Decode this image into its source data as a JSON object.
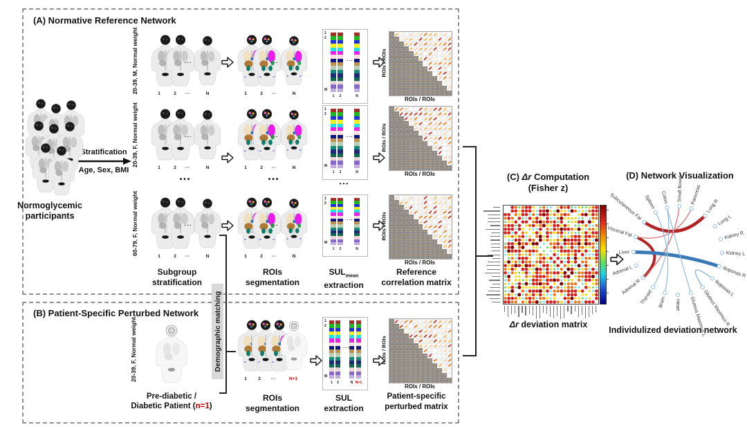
{
  "colors": {
    "accent_red": "#c00000",
    "panel_border": "#8f8f8f",
    "matrix_gray": "#8d8680",
    "demographic_bg": "#d9d9d9",
    "edge_red": "#b22222",
    "edge_red_thin": "#d66a6a",
    "edge_blue": "#3b78b5",
    "edge_blue_thin": "#90bada",
    "node_stroke": "#9cc3e5"
  },
  "panelA": {
    "title": "(A) Normative Reference Network",
    "participants_line1": "Normoglycemic",
    "participants_line2": "participants",
    "strat_top": "Stratification",
    "strat_bottom": "Age, Sex, BMI",
    "subgroups": [
      "20-39, M, Normal weight",
      "20-39, F, Normal weight",
      "60-79, F, Normal weight"
    ],
    "row_dots": "•••",
    "body_indices": [
      "1",
      "2",
      "···",
      "N"
    ],
    "sul_row_top": [
      "1",
      "2"
    ],
    "sul_row_bottom": "M",
    "sul_col_indices": [
      "1",
      "2",
      "N"
    ],
    "axis_label": "ROIs / ROIs",
    "cap_subgroup_1": "Subgroup",
    "cap_subgroup_2": "stratification",
    "cap_rois_1": "ROIs",
    "cap_rois_2": "segmentation",
    "cap_sul_main": "SUL",
    "cap_sul_sub": "mean",
    "cap_sul_2": "extraction",
    "cap_matrix_1": "Reference",
    "cap_matrix_2": "correlation matrix"
  },
  "panelB": {
    "title": "(B) Patient-Specific Perturbed Network",
    "patient_strat": "20-39, F, Normal weight",
    "patient_cap_line1": "Pre-diabetic /",
    "patient_cap_pre": "Diabetic Patient (",
    "patient_cap_red": "n=1",
    "patient_cap_post": ")",
    "demographic": "Demographic matching",
    "body_indices": [
      "1",
      "2",
      "···"
    ],
    "body_index_last": "N+1",
    "sul_col_indices": [
      "1",
      "2",
      "N"
    ],
    "sul_col_last": "N+1",
    "axis_label": "ROIs / ROIs",
    "cap_rois_1": "ROIs",
    "cap_rois_2": "segmentation",
    "cap_sul_1": "SUL",
    "cap_sul_2": "extraction",
    "cap_matrix_1": "Patient-specific",
    "cap_matrix_2": "perturbed matrix"
  },
  "panelC": {
    "title_pre": "(C) ",
    "title_italic": "Δr",
    "title_post": " Computation",
    "title_line2": "(Fisher z)",
    "cap_italic": "Δr",
    "cap_post": " deviation matrix",
    "matrix": {
      "size": 27,
      "seed": 12345,
      "palette": [
        {
          "c": "#7f0000",
          "r": 2.6,
          "p": 0.05
        },
        {
          "c": "#d62020",
          "r": 2.4,
          "p": 0.3
        },
        {
          "c": "#f07010",
          "r": 2.1,
          "p": 0.22
        },
        {
          "c": "#f5d800",
          "r": 1.7,
          "p": 0.2
        },
        {
          "c": "#50d050",
          "r": 1.4,
          "p": 0.07
        },
        {
          "c": "#30d0e0",
          "r": 1.2,
          "p": 0.11
        },
        {
          "c": "none",
          "r": 0,
          "p": 0.05
        }
      ]
    }
  },
  "panelD": {
    "title": "(D) Network Visualization",
    "caption": "Individulized deviation network",
    "nodes": [
      {
        "label": "Pancreas",
        "angle": 72
      },
      {
        "label": "Small Bowel",
        "angle": 88
      },
      {
        "label": "Colon",
        "angle": 104
      },
      {
        "label": "Spleen",
        "angle": 120
      },
      {
        "label": "Subcutaneous Fat",
        "angle": 140
      },
      {
        "label": "Visceral Fat",
        "angle": 162
      },
      {
        "label": "Liver",
        "angle": 182
      },
      {
        "label": "Adrenal L",
        "angle": 200
      },
      {
        "label": "Adrenal R",
        "angle": 218
      },
      {
        "label": "Thyroid",
        "angle": 236
      },
      {
        "label": "Brain",
        "angle": 253
      },
      {
        "label": "Heart",
        "angle": 270
      },
      {
        "label": "Gluteus Maximus L",
        "angle": 287
      },
      {
        "label": "Gluteus Maximus R",
        "angle": 304
      },
      {
        "label": "Iliopsoas L",
        "angle": 321
      },
      {
        "label": "Iliopsoas R",
        "angle": 339
      },
      {
        "label": "Kidney L",
        "angle": 357
      },
      {
        "label": "Kidney R",
        "angle": 15
      },
      {
        "label": "Lung L",
        "angle": 33
      },
      {
        "label": "Lung R",
        "angle": 52
      }
    ],
    "edges": [
      {
        "from": "Subcutaneous Fat",
        "to": "Lung R",
        "type": "red",
        "w": 4.5
      },
      {
        "from": "Visceral Fat",
        "to": "Adrenal R",
        "type": "red",
        "w": 4
      },
      {
        "from": "Visceral Fat",
        "to": "Pancreas",
        "type": "red_thin",
        "w": 1.2
      },
      {
        "from": "Adrenal R",
        "to": "Small Bowel",
        "type": "red_thin",
        "w": 1.2
      },
      {
        "from": "Liver",
        "to": "Iliopsoas R",
        "type": "blue",
        "w": 5
      },
      {
        "from": "Spleen",
        "to": "Brain",
        "type": "blue_thin",
        "w": 1.2
      },
      {
        "from": "Colon",
        "to": "Thyroid",
        "type": "blue_thin",
        "w": 1.2
      },
      {
        "from": "Colon",
        "to": "Gluteus Maximus L",
        "type": "blue_thin",
        "w": 1.2
      },
      {
        "from": "Iliopsoas L",
        "to": "Gluteus Maximus R",
        "type": "blue_thin",
        "w": 1.6
      }
    ]
  },
  "sul_colors": [
    "#a03028",
    "#20b820",
    "#2030e0",
    "#f0f020",
    "#20e0e0",
    "#e820e8",
    "#f8e0dc",
    "#101880",
    "#c09050",
    "#b8ccb4",
    "#188878",
    "#202878",
    "#106850",
    "#ecd4d4",
    "#8868c8",
    "#c4aee0"
  ],
  "corr_matrix": {
    "size": 13,
    "seed": 99
  }
}
